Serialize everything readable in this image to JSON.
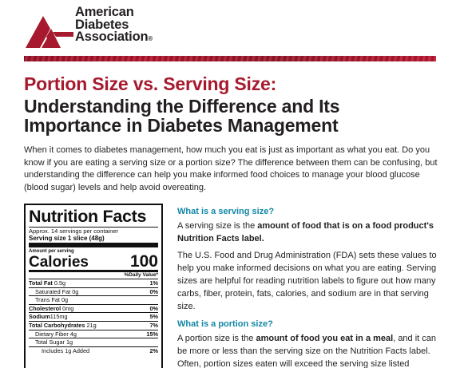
{
  "org": {
    "name_line1": "American",
    "name_line2": "Diabetes",
    "name_line3": "Association",
    "registered_mark": "®",
    "brand_red": "#a6192e"
  },
  "title": {
    "line_red": "Portion Size vs. Serving Size:",
    "line_black": "Understanding the Difference and Its Importance in Diabetes Management"
  },
  "intro": "When it comes to diabetes management, how much you eat is just as important as what you eat. Do you know if you are eating a serving size or a portion size? The difference between them can be confusing, but understanding the difference can help you make informed food choices to manage your blood glucose (blood sugar) levels and help avoid overeating.",
  "nutrition": {
    "title": "Nutrition Facts",
    "servings_per_container": "Approx. 14 servings per container",
    "serving_size_label": "Serving size",
    "serving_size_value": "1 slice (48g)",
    "amount_per_serving": "Amount per serving",
    "calories_label": "Calories",
    "calories_value": "100",
    "daily_value_header": "%Daily Value*",
    "rows": [
      {
        "label": "Total Fat",
        "amount": "0.5g",
        "pct": "1%"
      },
      {
        "label": "Saturated Fat",
        "amount": "0g",
        "pct": "0%"
      },
      {
        "label": "Trans Fat",
        "amount": "0g",
        "pct": ""
      },
      {
        "label": "Cholesterol",
        "amount": "0mg",
        "pct": "0%"
      },
      {
        "label": "Sodium",
        "amount": "115mg",
        "pct": "5%"
      },
      {
        "label": "Total Carbohydrates",
        "amount": "21g",
        "pct": "7%"
      },
      {
        "label": "Dietary Fiber",
        "amount": "4g",
        "pct": "15%"
      },
      {
        "label": "Total Sugar",
        "amount": "1g",
        "pct": ""
      },
      {
        "label": "Includes",
        "amount": "1g Added",
        "pct": "2%"
      }
    ]
  },
  "sections": {
    "serving": {
      "heading": "What is a serving size?",
      "p1_pre": "A serving size is the ",
      "p1_bold": "amount of food that is on a food product's Nutrition Facts label.",
      "p2": "The U.S. Food and Drug Administration (FDA) sets these values to help you make informed decisions on what you are eating. Serving sizes are helpful for reading nutrition labels to figure out how many carbs, fiber, protein, fats, calories, and sodium are in that serving size."
    },
    "portion": {
      "heading": "What is a portion size?",
      "p1_pre": "A portion size is the ",
      "p1_bold": "amount of food you eat in a meal",
      "p1_post": ", and it can be more or less than the serving size on the Nutrition Facts label. Often, portion sizes eaten will exceed the serving size listed"
    }
  },
  "colors": {
    "heading_teal": "#1287a6",
    "text": "#231f20"
  }
}
